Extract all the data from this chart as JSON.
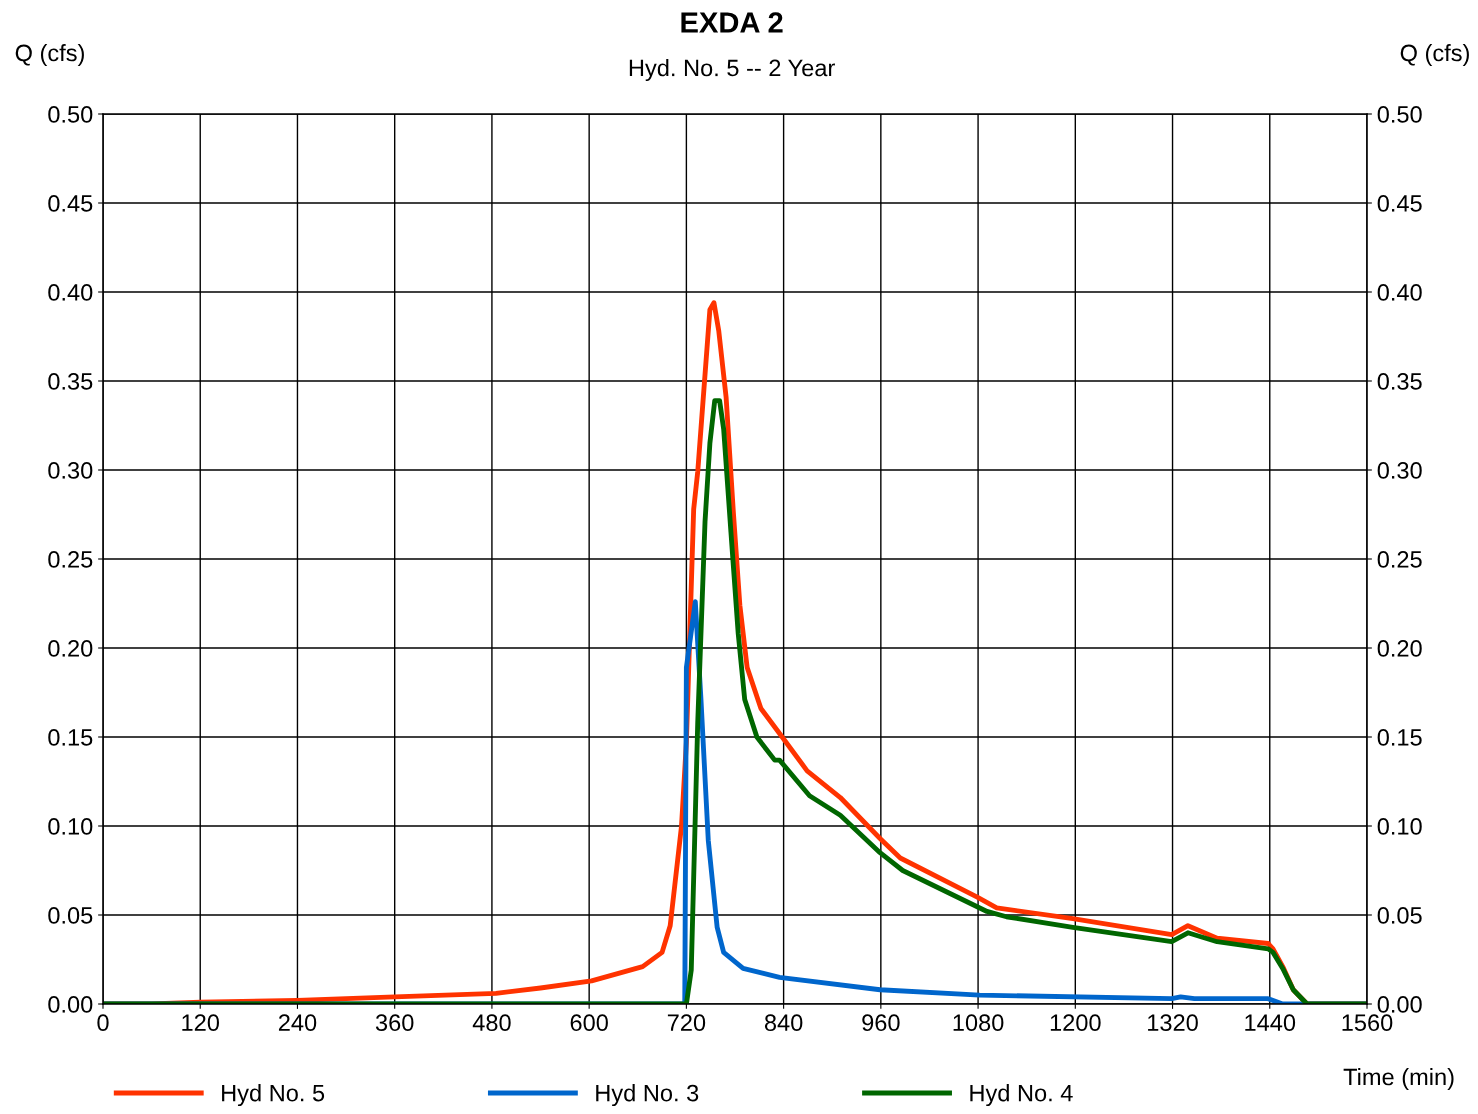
{
  "chart_data": {
    "type": "line",
    "title": "EXDA 2",
    "subtitle": "Hyd. No. 5 -- 2 Year",
    "xlabel": "Time (min)",
    "ylabel": "Q (cfs)",
    "y2label": "Q (cfs)",
    "xlim": [
      0,
      1560
    ],
    "xticks": [
      0,
      120,
      240,
      360,
      480,
      600,
      720,
      840,
      960,
      1080,
      1200,
      1320,
      1440,
      1560
    ],
    "ylim": [
      0,
      0.5
    ],
    "yticks": [
      {
        "value": 0,
        "label": "0.00"
      },
      {
        "value": 0.05,
        "label": "0.05"
      },
      {
        "value": 0.1,
        "label": "0.10"
      },
      {
        "value": 0.15,
        "label": "0.15"
      },
      {
        "value": 0.2,
        "label": "0.20"
      },
      {
        "value": 0.25,
        "label": "0.25"
      },
      {
        "value": 0.3,
        "label": "0.30"
      },
      {
        "value": 0.35,
        "label": "0.35"
      },
      {
        "value": 0.4,
        "label": "0.40"
      },
      {
        "value": 0.45,
        "label": "0.45"
      },
      {
        "value": 0.5,
        "label": "0.50"
      }
    ],
    "y2lim": [
      0,
      0.5
    ],
    "y2ticks": [
      {
        "value": 0,
        "label": "0.00"
      },
      {
        "value": 0.05,
        "label": "0.05"
      },
      {
        "value": 0.1,
        "label": "0.10"
      },
      {
        "value": 0.15,
        "label": "0.15"
      },
      {
        "value": 0.2,
        "label": "0.20"
      },
      {
        "value": 0.25,
        "label": "0.25"
      },
      {
        "value": 0.3,
        "label": "0.30"
      },
      {
        "value": 0.35,
        "label": "0.35"
      },
      {
        "value": 0.4,
        "label": "0.40"
      },
      {
        "value": 0.45,
        "label": "0.45"
      },
      {
        "value": 0.5,
        "label": "0.50"
      }
    ],
    "grid": true,
    "legend": "bottom",
    "marker": "none",
    "line_style": "solid",
    "series": [
      {
        "name": "Hyd No. 5",
        "color": "#ff3300",
        "x": [
          0,
          60,
          120,
          240,
          360,
          485,
          540,
          603,
          666,
          690,
          700,
          714,
          720,
          729,
          734,
          749,
          754,
          760,
          769,
          778,
          786,
          795,
          812,
          835,
          869,
          910,
          959,
          984,
          1079,
          1103,
          1197,
          1319,
          1339,
          1375,
          1438,
          1444,
          1456,
          1469,
          1486,
          1560
        ],
        "values": [
          0,
          0,
          0.001,
          0.002,
          0.004,
          0.006,
          0.009,
          0.013,
          0.021,
          0.029,
          0.044,
          0.1,
          0.147,
          0.278,
          0.299,
          0.39,
          0.394,
          0.378,
          0.341,
          0.276,
          0.224,
          0.189,
          0.166,
          0.152,
          0.131,
          0.116,
          0.093,
          0.082,
          0.06,
          0.054,
          0.048,
          0.039,
          0.044,
          0.037,
          0.034,
          0.031,
          0.021,
          0.008,
          0,
          0
        ]
      },
      {
        "name": "Hyd No. 3",
        "color": "#0066cc",
        "x": [
          0,
          718,
          720,
          731,
          738,
          747,
          758,
          766,
          790,
          835,
          959,
          1082,
          1319,
          1330,
          1347,
          1438,
          1456,
          1560
        ],
        "values": [
          0,
          0,
          0.189,
          0.226,
          0.171,
          0.092,
          0.043,
          0.029,
          0.02,
          0.015,
          0.008,
          0.005,
          0.003,
          0.004,
          0.003,
          0.003,
          0,
          0
        ]
      },
      {
        "name": "Hyd No. 4",
        "color": "#006600",
        "x": [
          0,
          720,
          726,
          734,
          743,
          749,
          755,
          761,
          766,
          775,
          784,
          792,
          807,
          829,
          835,
          872,
          910,
          959,
          987,
          1091,
          1115,
          1197,
          1319,
          1339,
          1375,
          1438,
          1444,
          1456,
          1469,
          1486,
          1560
        ],
        "values": [
          0,
          0,
          0.019,
          0.158,
          0.271,
          0.315,
          0.339,
          0.339,
          0.323,
          0.265,
          0.208,
          0.171,
          0.15,
          0.137,
          0.137,
          0.117,
          0.106,
          0.085,
          0.075,
          0.052,
          0.049,
          0.043,
          0.035,
          0.04,
          0.035,
          0.031,
          0.029,
          0.02,
          0.008,
          0,
          0
        ]
      }
    ]
  }
}
